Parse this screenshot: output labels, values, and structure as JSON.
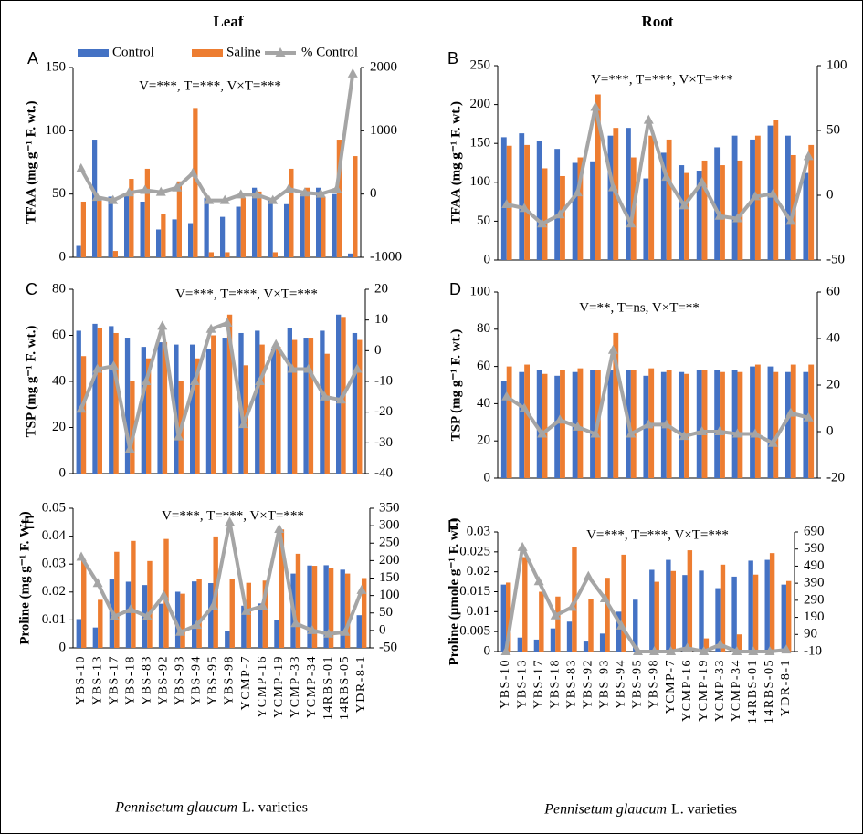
{
  "headings": [
    "Leaf",
    "Root"
  ],
  "x_axis_title": {
    "italic": "Pennisetum glaucum",
    "rest": "L. varieties"
  },
  "chart_data": [
    {
      "type": "bar",
      "panel": "A",
      "ylabel": "TFAA (mg g⁻¹ F. wt.)",
      "annotation": "V=***,  T=***, V×T=***",
      "ylim": [
        0,
        150
      ],
      "yticks": [
        0,
        50,
        100,
        150
      ],
      "y2lim": [
        -1000,
        2000
      ],
      "y2ticks": [
        -1000,
        0,
        1000,
        2000
      ],
      "series": [
        {
          "name": "Control",
          "color": "#4472c4",
          "values": [
            9,
            93,
            48,
            50,
            44,
            22,
            30,
            27,
            47,
            32,
            40,
            55,
            45,
            42,
            50,
            55,
            50,
            3
          ]
        },
        {
          "name": "Saline",
          "color": "#ed7d31",
          "values": [
            44,
            47,
            5,
            62,
            70,
            34,
            60,
            118,
            4,
            4,
            47,
            52,
            4,
            70,
            55,
            48,
            93,
            80
          ]
        },
        {
          "name": "% Control",
          "color": "#a5a5a5",
          "axis": "y2",
          "values": [
            400,
            -50,
            -100,
            20,
            60,
            30,
            100,
            330,
            -100,
            -100,
            -10,
            -10,
            -100,
            80,
            20,
            0,
            80,
            1900
          ]
        }
      ]
    },
    {
      "type": "bar",
      "panel": "B",
      "ylabel": "TFAA (mg g⁻¹ F. wt.)",
      "annotation": "V=***, T=***, V×T=***",
      "ylim": [
        0,
        250
      ],
      "yticks": [
        0,
        50,
        100,
        150,
        200,
        250
      ],
      "y2lim": [
        -50,
        100
      ],
      "y2ticks": [
        -50,
        0,
        50,
        100
      ],
      "series": [
        {
          "name": "Control",
          "color": "#4472c4",
          "values": [
            158,
            163,
            153,
            143,
            125,
            127,
            160,
            170,
            105,
            138,
            122,
            115,
            145,
            160,
            155,
            173,
            160,
            112
          ]
        },
        {
          "name": "Saline",
          "color": "#ed7d31",
          "values": [
            147,
            148,
            118,
            108,
            132,
            213,
            170,
            132,
            160,
            155,
            112,
            128,
            122,
            128,
            160,
            180,
            135,
            148
          ]
        },
        {
          "name": "% Control",
          "color": "#a5a5a5",
          "axis": "y2",
          "values": [
            -7,
            -10,
            -22,
            -15,
            2,
            68,
            6,
            -22,
            58,
            14,
            -8,
            10,
            -16,
            -18,
            -1,
            1,
            -20,
            30
          ]
        }
      ]
    },
    {
      "type": "bar",
      "panel": "C",
      "ylabel": "TSP (mg g⁻¹ F. wt.)",
      "annotation": "V=***, T=***, V×T=***",
      "ylim": [
        0,
        80
      ],
      "yticks": [
        0,
        20,
        40,
        60,
        80
      ],
      "y2lim": [
        -40,
        20
      ],
      "y2ticks": [
        -40,
        -30,
        -20,
        -10,
        0,
        10,
        20
      ],
      "series": [
        {
          "name": "Control",
          "color": "#4472c4",
          "values": [
            62,
            65,
            64,
            59,
            55,
            57,
            56,
            56,
            54,
            59,
            61,
            62,
            54,
            63,
            59,
            62,
            69,
            61
          ]
        },
        {
          "name": "Saline",
          "color": "#ed7d31",
          "values": [
            51,
            63,
            61,
            40,
            50,
            57,
            40,
            50,
            60,
            69,
            47,
            56,
            55,
            58,
            59,
            52,
            68,
            58
          ]
        },
        {
          "name": "% Control",
          "color": "#a5a5a5",
          "axis": "y2",
          "values": [
            -19,
            -6,
            -5,
            -32,
            -10,
            8,
            -28,
            -10,
            7,
            9,
            -24,
            -10,
            2,
            -6,
            -6,
            -15,
            -16,
            -6
          ]
        }
      ]
    },
    {
      "type": "bar",
      "panel": "D",
      "ylabel": "TSP (mg g⁻¹ F. wt.)",
      "annotation": "V=**, T=ns, V×T=**",
      "ylim": [
        0,
        100
      ],
      "yticks": [
        0,
        20,
        40,
        60,
        80,
        100
      ],
      "y2lim": [
        -20,
        60
      ],
      "y2ticks": [
        -20,
        0,
        20,
        40,
        60
      ],
      "series": [
        {
          "name": "Control",
          "color": "#4472c4",
          "values": [
            52,
            57,
            58,
            55,
            57,
            58,
            58,
            58,
            55,
            57,
            57,
            58,
            58,
            58,
            60,
            60,
            57,
            57
          ]
        },
        {
          "name": "Saline",
          "color": "#ed7d31",
          "values": [
            60,
            61,
            56,
            58,
            59,
            58,
            78,
            58,
            59,
            58,
            56,
            58,
            57,
            57,
            61,
            57,
            61,
            61
          ]
        },
        {
          "name": "% Control",
          "color": "#a5a5a5",
          "axis": "y2",
          "values": [
            15,
            10,
            -1,
            5,
            2,
            -1,
            35,
            -1,
            3,
            3,
            -2,
            0,
            0,
            -1,
            -1,
            -5,
            8,
            6
          ]
        }
      ]
    },
    {
      "type": "bar",
      "panel": "E",
      "ylabel": "Proline (mg g⁻¹ F. Wt.)",
      "annotation": "V=***,  T=***, V×T=***",
      "categories": [
        "YBS-10",
        "YBS-13",
        "YBS-17",
        "YBS-18",
        "YBS-83",
        "YBS-92",
        "YBS-93",
        "YBS-94",
        "YBS-95",
        "YBS-98",
        "YCMP-7",
        "YCMP-16",
        "YCMP-19",
        "YCMP-33",
        "YCMP-34",
        "14RBS-01",
        "14RBS-05",
        "YDR-8-1"
      ],
      "ylim": [
        0,
        0.05
      ],
      "yticks": [
        0,
        0.01,
        0.02,
        0.03,
        0.04,
        0.05
      ],
      "y2lim": [
        -50,
        350
      ],
      "y2ticks": [
        -50,
        0,
        50,
        100,
        150,
        200,
        250,
        300,
        350
      ],
      "series": [
        {
          "name": "Control",
          "color": "#4472c4",
          "values": [
            0.0103,
            0.0073,
            0.0245,
            0.0237,
            0.0225,
            0.0158,
            0.0201,
            0.0238,
            0.0232,
            0.0062,
            0.0151,
            0.0159,
            0.0101,
            0.0266,
            0.0295,
            0.0296,
            0.028,
            0.0117
          ]
        },
        {
          "name": "Saline",
          "color": "#ed7d31",
          "values": [
            0.0313,
            0.0172,
            0.0344,
            0.0383,
            0.0311,
            0.039,
            0.0194,
            0.0247,
            0.0399,
            0.0247,
            0.0233,
            0.0241,
            0.0424,
            0.0337,
            0.0294,
            0.0287,
            0.0266,
            0.025
          ]
        },
        {
          "name": "% Control",
          "color": "#a5a5a5",
          "axis": "y2",
          "values": [
            210,
            135,
            40,
            60,
            40,
            100,
            -5,
            15,
            70,
            310,
            55,
            70,
            290,
            20,
            0,
            -10,
            -5,
            115
          ]
        }
      ]
    },
    {
      "type": "bar",
      "panel": "F",
      "ylabel": "Proline (µmole g⁻¹ F. wt.)",
      "annotation": "V=***, T=***, V×T=***",
      "categories": [
        "YBS-10",
        "YBS-13",
        "YBS-17",
        "YBS-18",
        "YBS-83",
        "YBS-92",
        "YBS-93",
        "YBS-94",
        "YBS-95",
        "YBS-98",
        "YCMP-7",
        "YCMP-16",
        "YCMP-19",
        "YCMP-33",
        "YCMP-34",
        "14RBS-01",
        "14RBS-05",
        "YDR-8-1"
      ],
      "ylim": [
        0,
        0.03
      ],
      "yticks": [
        0,
        0.005,
        0.01,
        0.015,
        0.02,
        0.025,
        0.03
      ],
      "y2lim": [
        -10,
        690
      ],
      "y2ticks": [
        -10,
        90,
        190,
        290,
        390,
        490,
        590,
        690
      ],
      "series": [
        {
          "name": "Control",
          "color": "#4472c4",
          "values": [
            0.0168,
            0.0035,
            0.003,
            0.0058,
            0.0075,
            0.0025,
            0.0045,
            0.01,
            0.013,
            0.0205,
            0.023,
            0.0192,
            0.0203,
            0.0159,
            0.0188,
            0.0228,
            0.023,
            0.0168
          ]
        },
        {
          "name": "Saline",
          "color": "#ed7d31",
          "values": [
            0.0173,
            0.0237,
            0.015,
            0.0138,
            0.0262,
            0.0131,
            0.0185,
            0.0243,
            0.0003,
            0.0175,
            0.0202,
            0.0254,
            0.0033,
            0.0218,
            0.0043,
            0.0193,
            0.0247,
            0.0177
          ]
        },
        {
          "name": "% Control",
          "color": "#a5a5a5",
          "axis": "y2",
          "values": [
            -10,
            600,
            400,
            200,
            250,
            430,
            300,
            140,
            -10,
            -10,
            -10,
            10,
            -10,
            30,
            -10,
            -10,
            -10,
            0
          ]
        }
      ]
    }
  ]
}
